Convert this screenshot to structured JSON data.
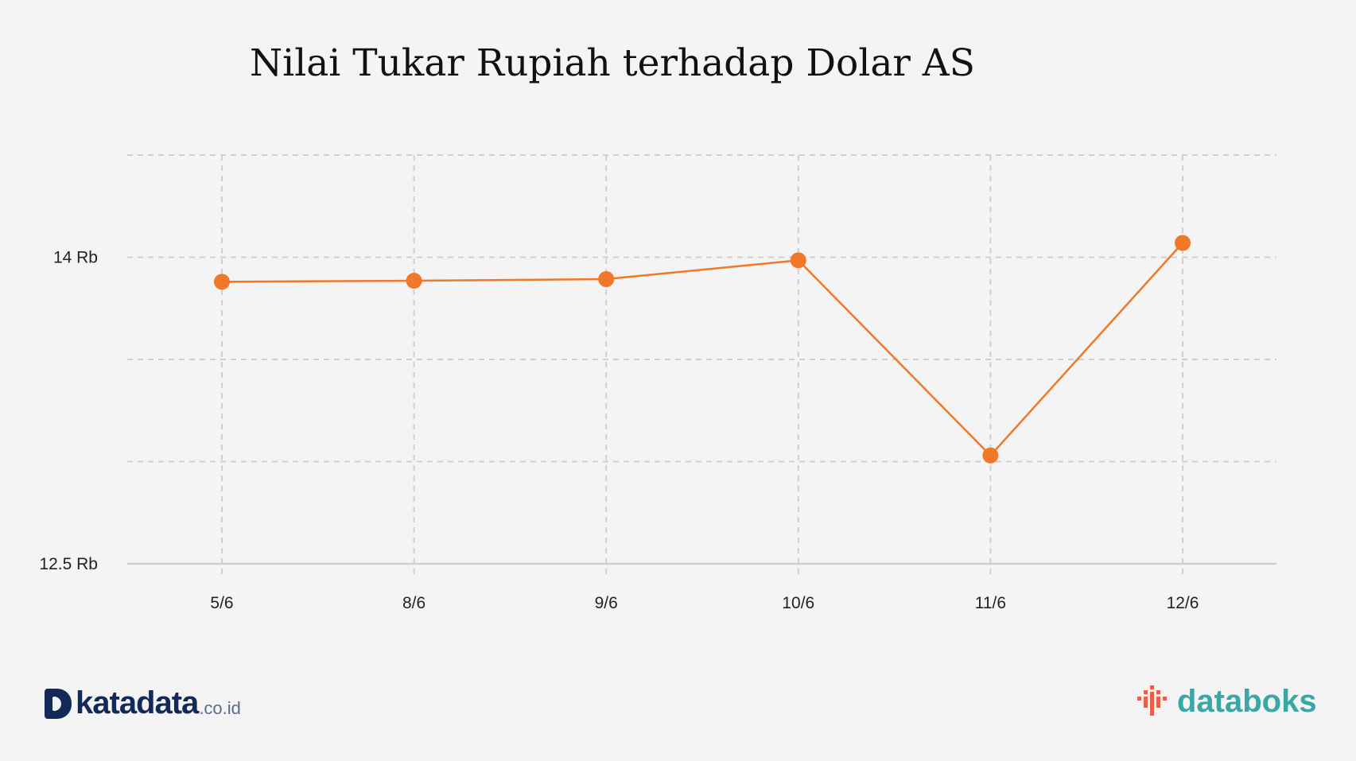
{
  "chart_data": {
    "type": "line",
    "title": "Nilai Tukar Rupiah terhadap Dolar AS",
    "categories": [
      "5/6",
      "8/6",
      "9/6",
      "10/6",
      "11/6",
      "12/6"
    ],
    "series": [
      {
        "values": [
          13880,
          13885,
          13893,
          13985,
          13030,
          14070
        ]
      }
    ],
    "y_ticks": [
      {
        "value": 14000,
        "label": "14 Rb"
      },
      {
        "value": 12500,
        "label": "12.5 Rb"
      }
    ],
    "ylim": [
      12500,
      14500
    ],
    "y_grid_step": 500,
    "grid": true,
    "colors": {
      "line": "#f07828",
      "marker": "#f07828"
    }
  },
  "branding": {
    "left_logo": {
      "word": "katadata",
      "suffix": ".co.id"
    },
    "right_logo": {
      "word": "databoks"
    }
  }
}
